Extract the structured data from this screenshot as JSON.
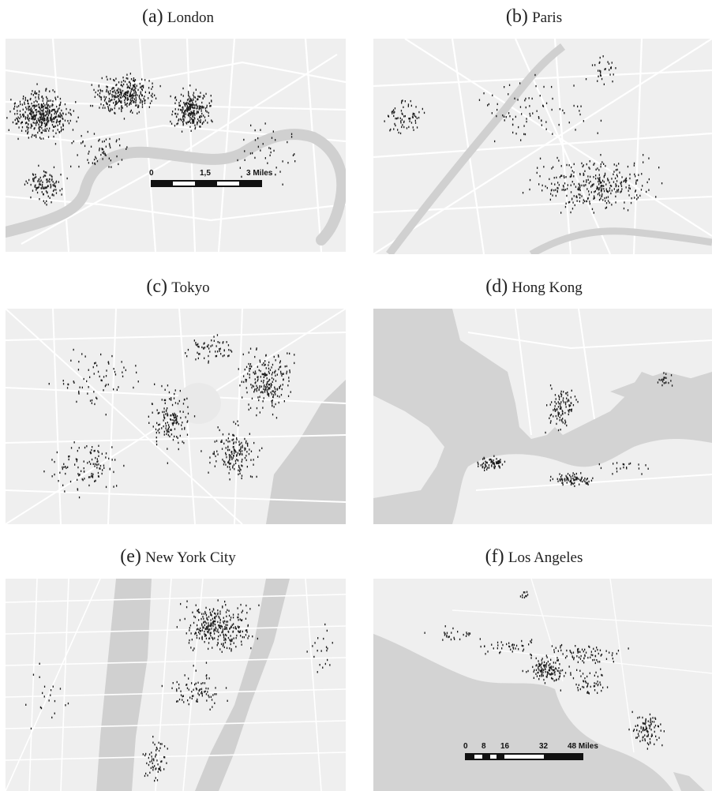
{
  "panels": [
    {
      "label": "(a)",
      "city": "London"
    },
    {
      "label": "(b)",
      "city": "Paris"
    },
    {
      "label": "(c)",
      "city": "Tokyo"
    },
    {
      "label": "(d)",
      "city": "Hong Kong"
    },
    {
      "label": "(e)",
      "city": "New York City"
    },
    {
      "label": "(f)",
      "city": "Los Angeles"
    }
  ],
  "scalebars": {
    "london": {
      "ticks": [
        "0",
        "1,5",
        "3 Miles"
      ]
    },
    "los_angeles": {
      "ticks": [
        "0",
        "8",
        "16",
        "32",
        "48 Miles"
      ]
    }
  },
  "colors": {
    "land": "#efefef",
    "water": "#d3d3d3",
    "road": "#ffffff",
    "point": "#1a1a1a"
  }
}
